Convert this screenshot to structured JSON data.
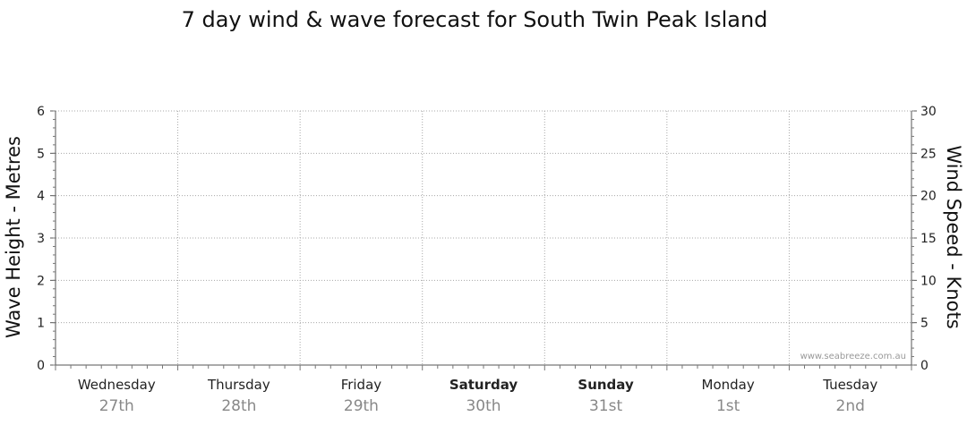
{
  "chart_data": {
    "type": "line",
    "title": "7 day wind & wave forecast for South Twin Peak Island",
    "ylabel_left": "Wave Height - Metres",
    "ylabel_right": "Wind Speed - Knots",
    "y_left": {
      "range": [
        0,
        6
      ],
      "ticks": [
        0,
        1,
        2,
        3,
        4,
        5,
        6
      ]
    },
    "y_right": {
      "range": [
        0,
        30
      ],
      "ticks": [
        0,
        5,
        10,
        15,
        20,
        25,
        30
      ]
    },
    "grid": true,
    "days": [
      {
        "name": "Wednesday",
        "date": "27th",
        "bold": false
      },
      {
        "name": "Thursday",
        "date": "28th",
        "bold": false
      },
      {
        "name": "Friday",
        "date": "29th",
        "bold": false
      },
      {
        "name": "Saturday",
        "date": "30th",
        "bold": true
      },
      {
        "name": "Sunday",
        "date": "31st",
        "bold": true
      },
      {
        "name": "Monday",
        "date": "1st",
        "bold": false
      },
      {
        "name": "Tuesday",
        "date": "2nd",
        "bold": false
      }
    ],
    "series": []
  },
  "watermark": "www.seabreeze.com.au"
}
